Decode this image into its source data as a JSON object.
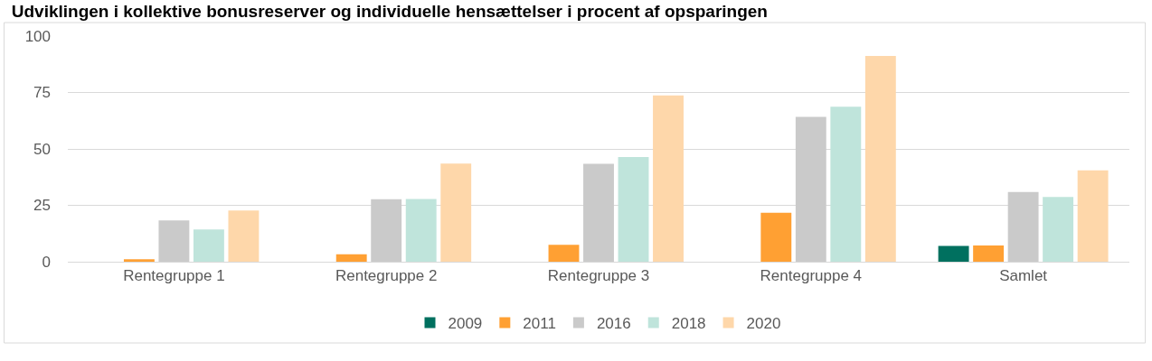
{
  "chart_data": {
    "type": "bar",
    "title": "Udviklingen i kollektive bonusreserver og individuelle hensættelser i procent af opsparingen",
    "categories": [
      "Rentegruppe 1",
      "Rentegruppe 2",
      "Rentegruppe 3",
      "Rentegruppe 4",
      "Samlet"
    ],
    "series": [
      {
        "name": "2009",
        "color": "#00705f",
        "values": [
          null,
          null,
          null,
          null,
          7
        ]
      },
      {
        "name": "2011",
        "color": "#ffa033",
        "values": [
          1.1,
          3.3,
          7.5,
          21.7,
          7.2
        ]
      },
      {
        "name": "2016",
        "color": "#cacaca",
        "values": [
          18.3,
          27.7,
          43.4,
          64.2,
          30.9
        ]
      },
      {
        "name": "2018",
        "color": "#bfe4db",
        "values": [
          14.3,
          27.8,
          46.4,
          68.7,
          28.7
        ]
      },
      {
        "name": "2020",
        "color": "#fed7aa",
        "values": [
          22.7,
          43.5,
          73.7,
          91.2,
          40.5
        ]
      }
    ],
    "ylim": [
      0,
      100
    ],
    "yticks": [
      0,
      25,
      50,
      75,
      100
    ],
    "grid": "y",
    "legend": "bottom"
  }
}
